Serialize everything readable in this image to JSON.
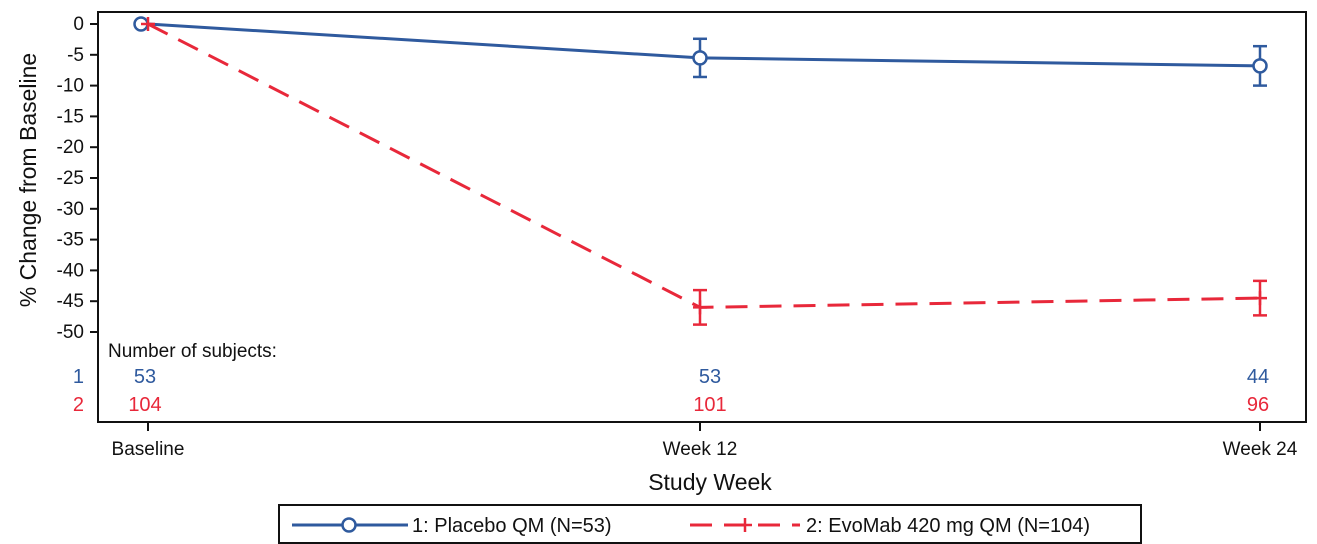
{
  "chart_data": {
    "type": "line",
    "title": "",
    "xlabel": "Study Week",
    "ylabel": "% Change from Baseline",
    "categories": [
      "Baseline",
      "Week 12",
      "Week 24"
    ],
    "ylim": [
      -55,
      2
    ],
    "yticks": [
      0,
      -5,
      -10,
      -15,
      -20,
      -25,
      -30,
      -35,
      -40,
      -45,
      -50
    ],
    "series": [
      {
        "name": "1: Placebo QM (N=53)",
        "row_label": "1",
        "color": "#2f5a9e",
        "dash": "solid",
        "marker": "circle",
        "values": [
          0,
          -5.5,
          -6.8
        ],
        "error": [
          0,
          3.1,
          3.2
        ],
        "counts": [
          "53",
          "53",
          "44"
        ]
      },
      {
        "name": "2: EvoMab 420 mg QM (N=104)",
        "row_label": "2",
        "color": "#e8283a",
        "dash": "dashed",
        "marker": "plus",
        "values": [
          0,
          -46,
          -44.5
        ],
        "error": [
          0,
          2.8,
          2.8
        ],
        "counts": [
          "104",
          "101",
          "96"
        ]
      }
    ],
    "subjects_header": "Number of subjects:",
    "legend_position": "bottom"
  }
}
